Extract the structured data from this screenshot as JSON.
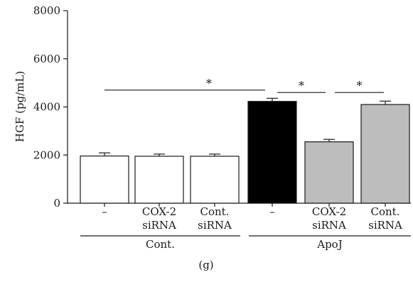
{
  "chart_data": {
    "type": "bar",
    "ylabel": "HGF (pg/mL)",
    "ylim": [
      0,
      8000
    ],
    "yticks": [
      0,
      2000,
      4000,
      6000,
      8000
    ],
    "categories": [
      {
        "line1": "–",
        "line2": "",
        "group": "Cont.",
        "value": 1960,
        "error": 130,
        "fill": "#ffffff"
      },
      {
        "line1": "COX-2",
        "line2": "siRNA",
        "group": "Cont.",
        "value": 1950,
        "error": 90,
        "fill": "#ffffff"
      },
      {
        "line1": "Cont.",
        "line2": "siRNA",
        "group": "Cont.",
        "value": 1950,
        "error": 90,
        "fill": "#ffffff"
      },
      {
        "line1": "–",
        "line2": "",
        "group": "ApoJ",
        "value": 4230,
        "error": 130,
        "fill": "#000000"
      },
      {
        "line1": "COX-2",
        "line2": "siRNA",
        "group": "ApoJ",
        "value": 2550,
        "error": 100,
        "fill": "#bdbdbd"
      },
      {
        "line1": "Cont.",
        "line2": "siRNA",
        "group": "ApoJ",
        "value": 4100,
        "error": 140,
        "fill": "#bdbdbd"
      }
    ],
    "groups": [
      {
        "label": "Cont.",
        "from": 0,
        "to": 2
      },
      {
        "label": "ApoJ",
        "from": 3,
        "to": 5
      }
    ],
    "significance": [
      {
        "from": 0,
        "to": 3,
        "y": 4700,
        "label": "*"
      },
      {
        "from": 3,
        "to": 4,
        "y": 4600,
        "label": "*"
      },
      {
        "from": 4,
        "to": 5,
        "y": 4600,
        "label": "*"
      }
    ],
    "panel_label": "(g)"
  }
}
